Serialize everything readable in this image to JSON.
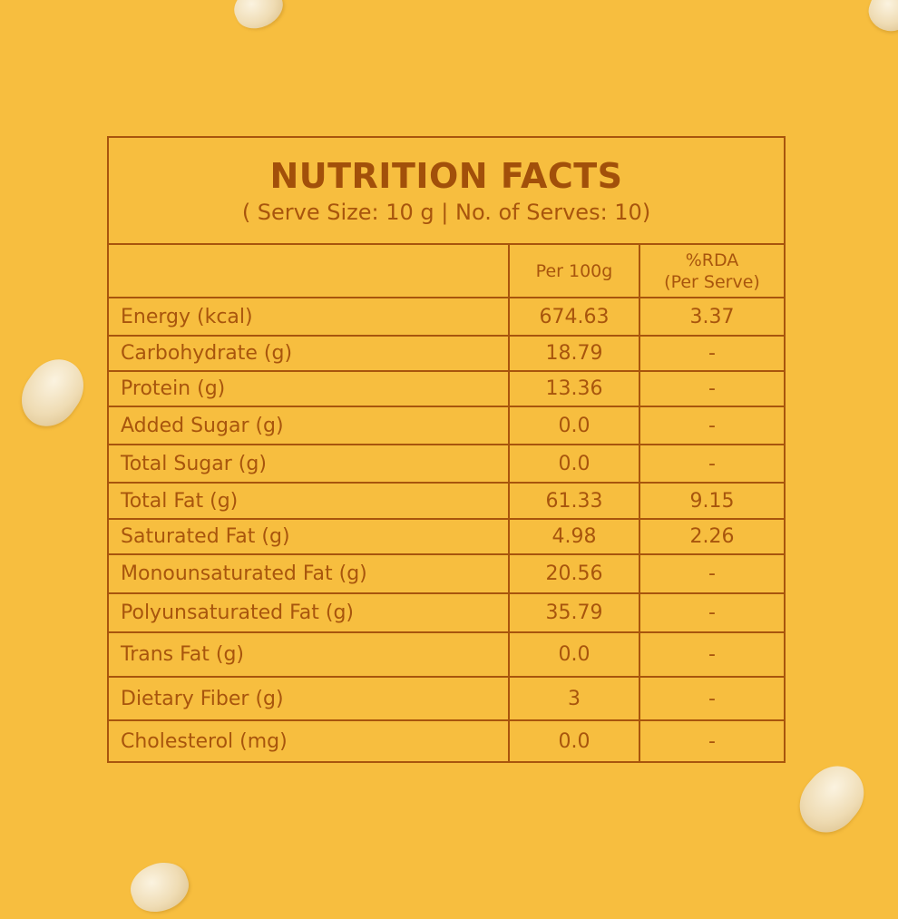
{
  "panel": {
    "title": "NUTRITION FACTS",
    "subtitle": "( Serve Size: 10 g | No. of Serves: 10)"
  },
  "table": {
    "header": {
      "col1": "",
      "col2": "Per 100g",
      "col3_line1": "%RDA",
      "col3_line2": "(Per Serve)"
    },
    "rows": [
      {
        "name": "Energy (kcal)",
        "per100g": "674.63",
        "rda": "3.37"
      },
      {
        "name": "Carbohydrate (g)",
        "per100g": "18.79",
        "rda": "-"
      },
      {
        "name": "Protein (g)",
        "per100g": "13.36",
        "rda": "-"
      },
      {
        "name": "Added Sugar (g)",
        "per100g": "0.0",
        "rda": "-"
      },
      {
        "name": "Total Sugar (g)",
        "per100g": "0.0",
        "rda": "-"
      },
      {
        "name": "Total Fat (g)",
        "per100g": "61.33",
        "rda": "9.15"
      },
      {
        "name": "Saturated Fat (g)",
        "per100g": "4.98",
        "rda": "2.26"
      },
      {
        "name": "Monounsaturated Fat (g)",
        "per100g": "20.56",
        "rda": "-"
      },
      {
        "name": "Polyunsaturated Fat (g)",
        "per100g": "35.79",
        "rda": "-"
      },
      {
        "name": "Trans Fat (g)",
        "per100g": "0.0",
        "rda": "-"
      },
      {
        "name": "Dietary Fiber (g)",
        "per100g": "3",
        "rda": "-"
      },
      {
        "name": "Cholesterol (mg)",
        "per100g": "0.0",
        "rda": "-"
      }
    ]
  },
  "colors": {
    "background": "#f7be3f",
    "text": "#a8550d",
    "seed": "#efdcb4"
  }
}
